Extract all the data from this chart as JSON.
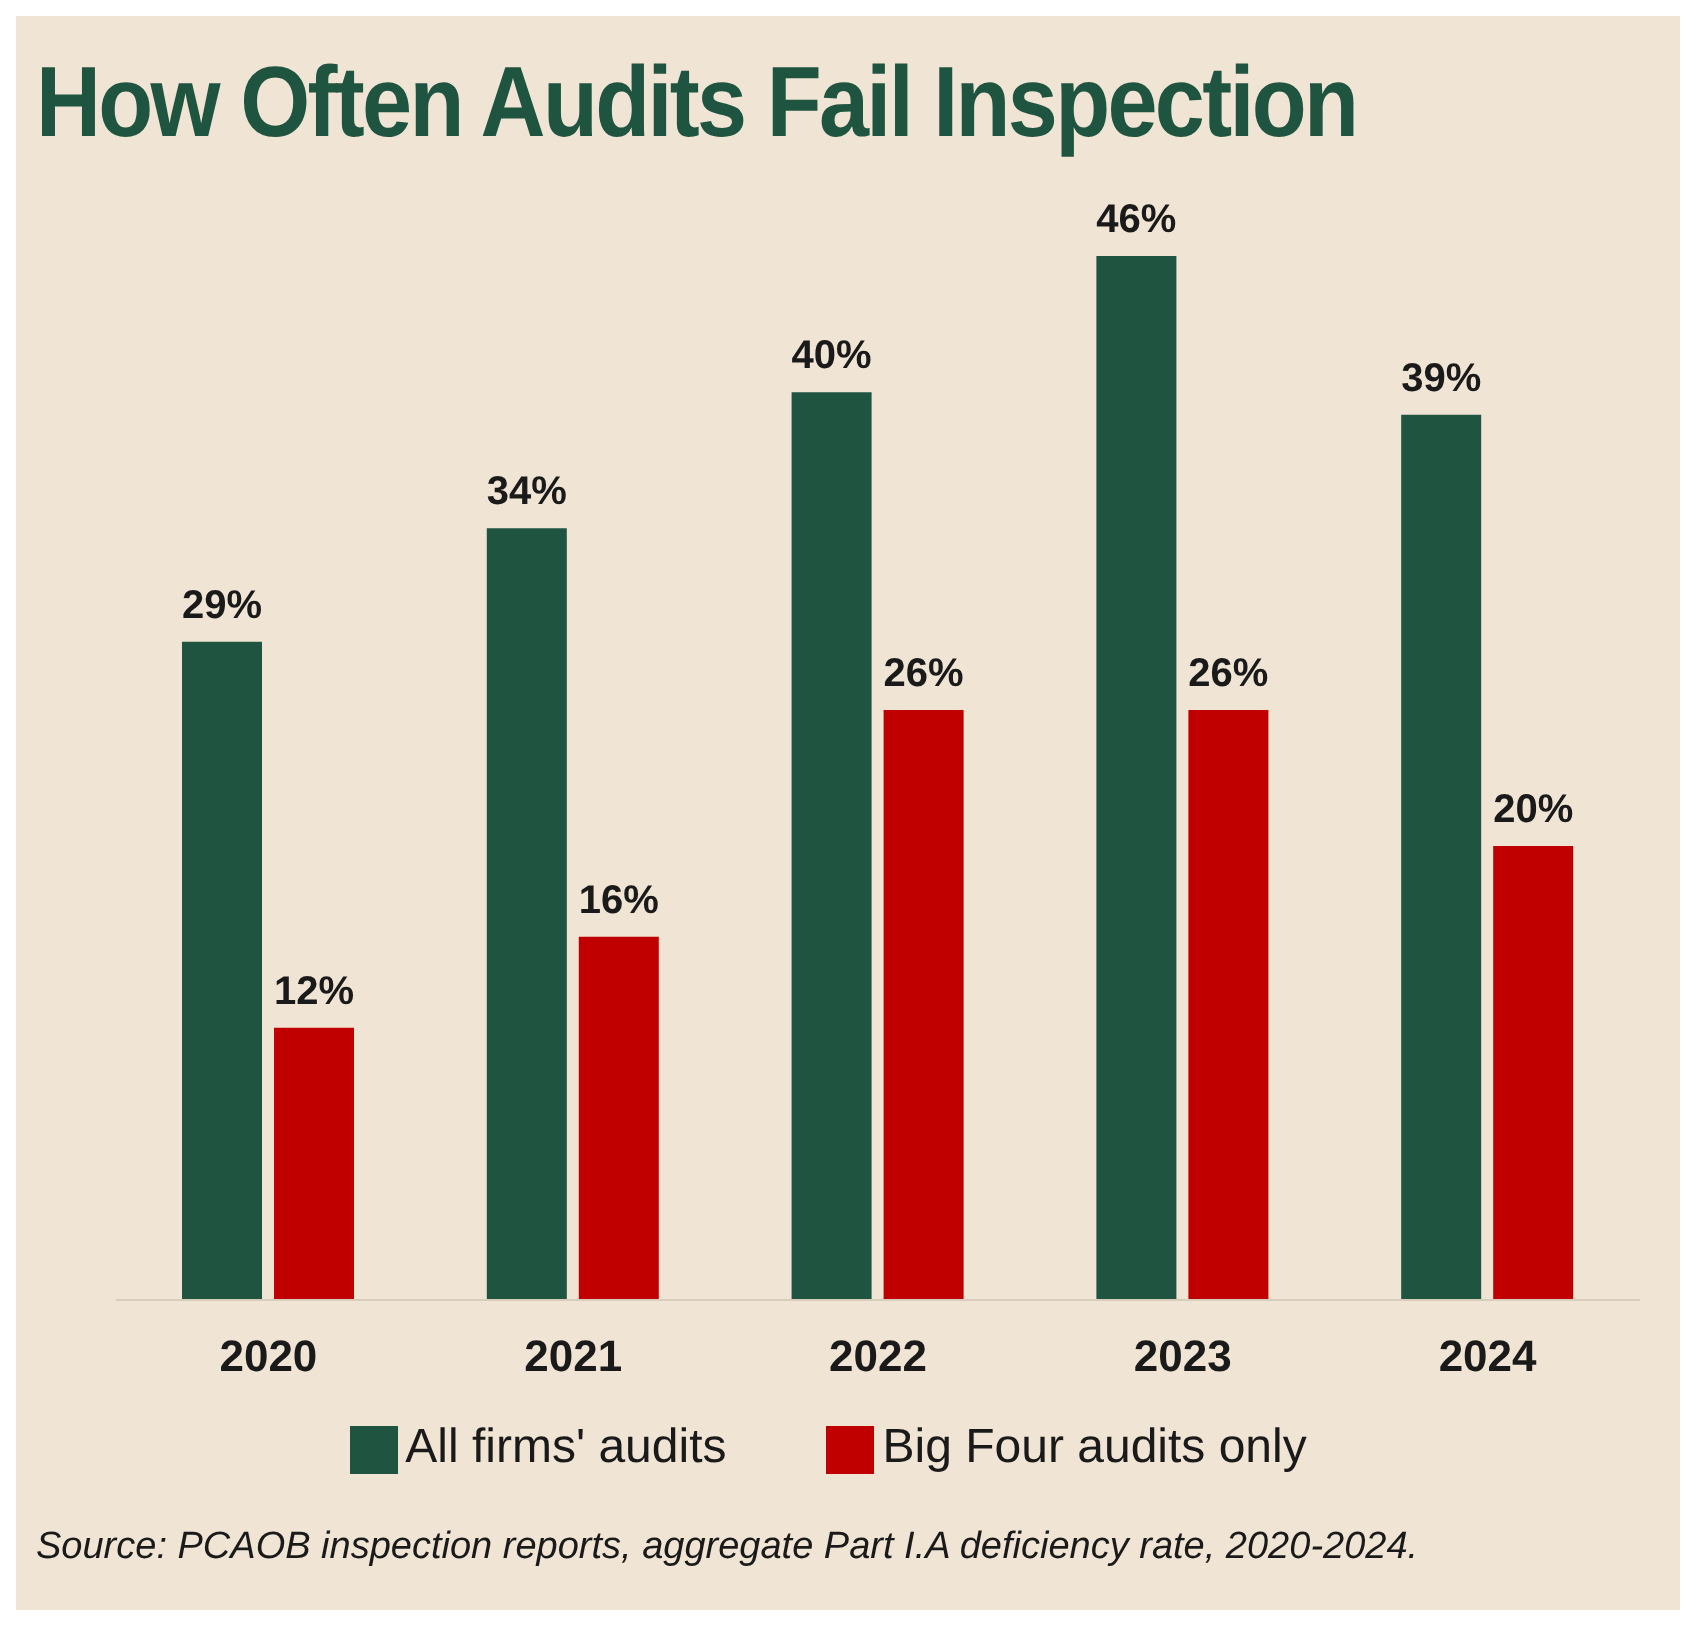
{
  "chart_data": {
    "type": "bar",
    "title": "How Often Audits Fail Inspection",
    "categories": [
      "2020",
      "2021",
      "2022",
      "2023",
      "2024"
    ],
    "series": [
      {
        "name": "All firms' audits",
        "color": "#1f5440",
        "values": [
          29,
          34,
          40,
          46,
          39
        ],
        "value_labels": [
          "29%",
          "34%",
          "40%",
          "46%",
          "39%"
        ]
      },
      {
        "name": "Big Four audits only",
        "color": "#c00000",
        "values": [
          12,
          16,
          26,
          26,
          20
        ],
        "value_labels": [
          "12%",
          "16%",
          "26%",
          "26%",
          "20%"
        ]
      }
    ],
    "legend": "bottom",
    "grid": false,
    "annotations": [
      "Source: PCAOB inspection reports, aggregate Part I.A deficiency rate, 2020-2024."
    ]
  }
}
